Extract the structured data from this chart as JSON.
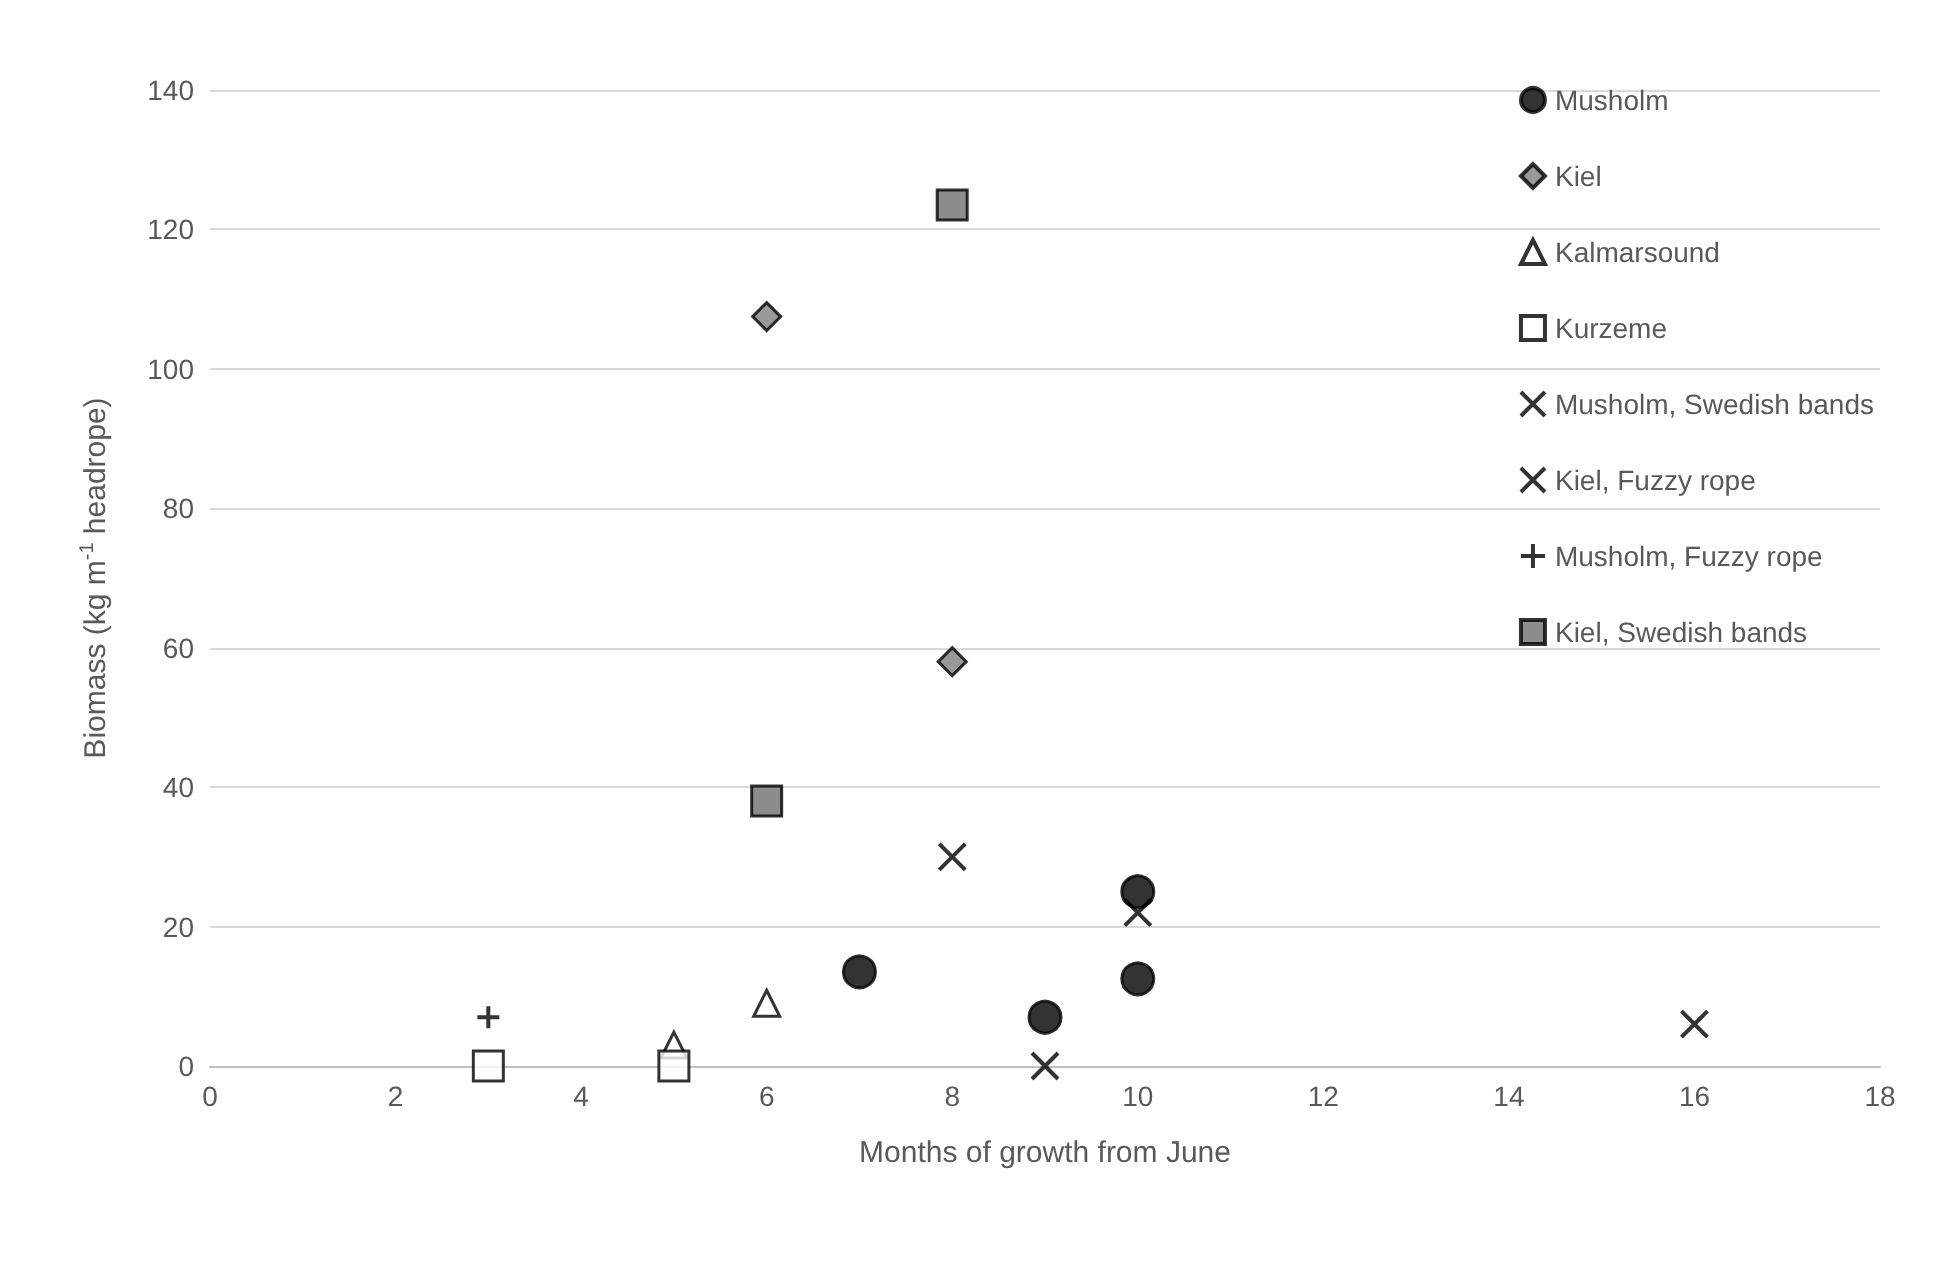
{
  "chart_data": {
    "type": "scatter",
    "xlabel": "Months of growth from June",
    "ylabel": "Biomass (kg m$^{-1}$ headrope)",
    "xlim": [
      0,
      18
    ],
    "xticks": [
      0,
      2,
      4,
      6,
      8,
      10,
      12,
      14,
      16,
      18
    ],
    "ylim": [
      0,
      140
    ],
    "yticks": [
      0,
      20,
      40,
      60,
      80,
      100,
      120,
      140
    ],
    "grid": "y",
    "legend": "right",
    "series": [
      {
        "name": "Musholm",
        "color": "#000000",
        "marker": "circle",
        "x": [
          7,
          9,
          10,
          10
        ],
        "values": [
          13.5,
          7,
          12.5,
          25
        ]
      },
      {
        "name": "Kiel",
        "color": "#808080",
        "marker": "diamond",
        "x": [
          6,
          8
        ],
        "values": [
          107.5,
          58
        ]
      },
      {
        "name": "Kalmarsound",
        "color": "#ffffff",
        "marker": "triangle",
        "x": [
          5,
          6
        ],
        "values": [
          3,
          9
        ]
      },
      {
        "name": "Kurzeme",
        "color": "#ffffff",
        "marker": "square",
        "x": [
          3,
          5
        ],
        "values": [
          0,
          0
        ]
      },
      {
        "name": "Musholm, Swedish bands",
        "color": "#000000",
        "marker": "cross",
        "x": [
          9,
          10
        ],
        "values": [
          0,
          22
        ]
      },
      {
        "name": "Kiel, Fuzzy rope",
        "color": "#000000",
        "marker": "cross",
        "x": [
          8,
          16
        ],
        "values": [
          30,
          6
        ]
      },
      {
        "name": "Musholm, Fuzzy rope",
        "color": "#000000",
        "marker": "plus",
        "x": [
          3
        ],
        "values": [
          7
        ]
      },
      {
        "name": "Kiel, Swedish bands",
        "color": "#707070",
        "marker": "square",
        "x": [
          6,
          8
        ],
        "values": [
          38,
          123.5
        ]
      }
    ]
  }
}
